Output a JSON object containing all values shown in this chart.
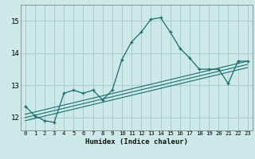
{
  "xlabel": "Humidex (Indice chaleur)",
  "bg_color": "#cce8e8",
  "grid_color": "#aacccc",
  "line_color": "#1a6e6a",
  "xlim": [
    -0.5,
    23.5
  ],
  "ylim": [
    11.6,
    15.5
  ],
  "yticks": [
    12,
    13,
    14,
    15
  ],
  "xticks": [
    0,
    1,
    2,
    3,
    4,
    5,
    6,
    7,
    8,
    9,
    10,
    11,
    12,
    13,
    14,
    15,
    16,
    17,
    18,
    19,
    20,
    21,
    22,
    23
  ],
  "main_x": [
    0,
    1,
    2,
    3,
    4,
    5,
    6,
    7,
    8,
    9,
    10,
    11,
    12,
    13,
    14,
    15,
    16,
    17,
    18,
    19,
    20,
    21,
    22,
    23
  ],
  "main_y": [
    12.35,
    12.05,
    11.9,
    11.85,
    12.75,
    12.85,
    12.75,
    12.85,
    12.55,
    12.85,
    13.8,
    14.35,
    14.65,
    15.05,
    15.1,
    14.65,
    14.15,
    13.85,
    13.5,
    13.5,
    13.5,
    13.05,
    13.75,
    13.75
  ],
  "line1_x": [
    0,
    23
  ],
  "line1_y": [
    11.9,
    13.55
  ],
  "line2_x": [
    0,
    23
  ],
  "line2_y": [
    12.0,
    13.65
  ],
  "line3_x": [
    0,
    23
  ],
  "line3_y": [
    12.1,
    13.75
  ]
}
